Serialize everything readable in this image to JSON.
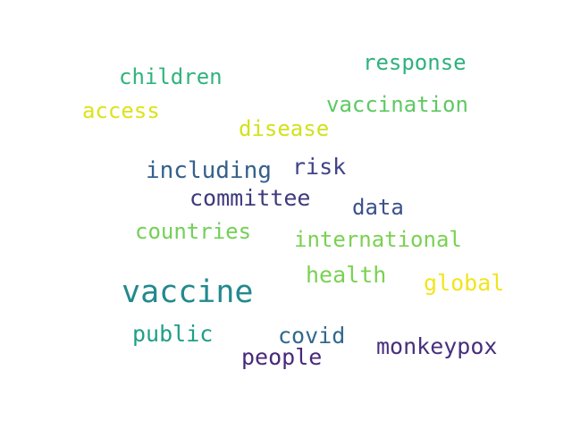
{
  "words": [
    {
      "id": "response",
      "text": "response",
      "color": "#2db27d"
    },
    {
      "id": "children",
      "text": "children",
      "color": "#2fb47c"
    },
    {
      "id": "vaccination",
      "text": "vaccination",
      "color": "#5ec962"
    },
    {
      "id": "access",
      "text": "access",
      "color": "#dde318"
    },
    {
      "id": "disease",
      "text": "disease",
      "color": "#d2e21b"
    },
    {
      "id": "risk",
      "text": "risk",
      "color": "#404387"
    },
    {
      "id": "including",
      "text": "including",
      "color": "#35608d"
    },
    {
      "id": "committee",
      "text": "committee",
      "color": "#3e3a7c"
    },
    {
      "id": "data",
      "text": "data",
      "color": "#3b518b"
    },
    {
      "id": "countries",
      "text": "countries",
      "color": "#73d056"
    },
    {
      "id": "international",
      "text": "international",
      "color": "#7ad151"
    },
    {
      "id": "health",
      "text": "health",
      "color": "#7ad151"
    },
    {
      "id": "global",
      "text": "global",
      "color": "#f1e51d"
    },
    {
      "id": "vaccine",
      "text": "vaccine",
      "color": "#23898e"
    },
    {
      "id": "public",
      "text": "public",
      "color": "#1f9e89"
    },
    {
      "id": "covid",
      "text": "covid",
      "color": "#31688e"
    },
    {
      "id": "monkeypox",
      "text": "monkeypox",
      "color": "#472f7d"
    },
    {
      "id": "people",
      "text": "people",
      "color": "#482878"
    }
  ]
}
